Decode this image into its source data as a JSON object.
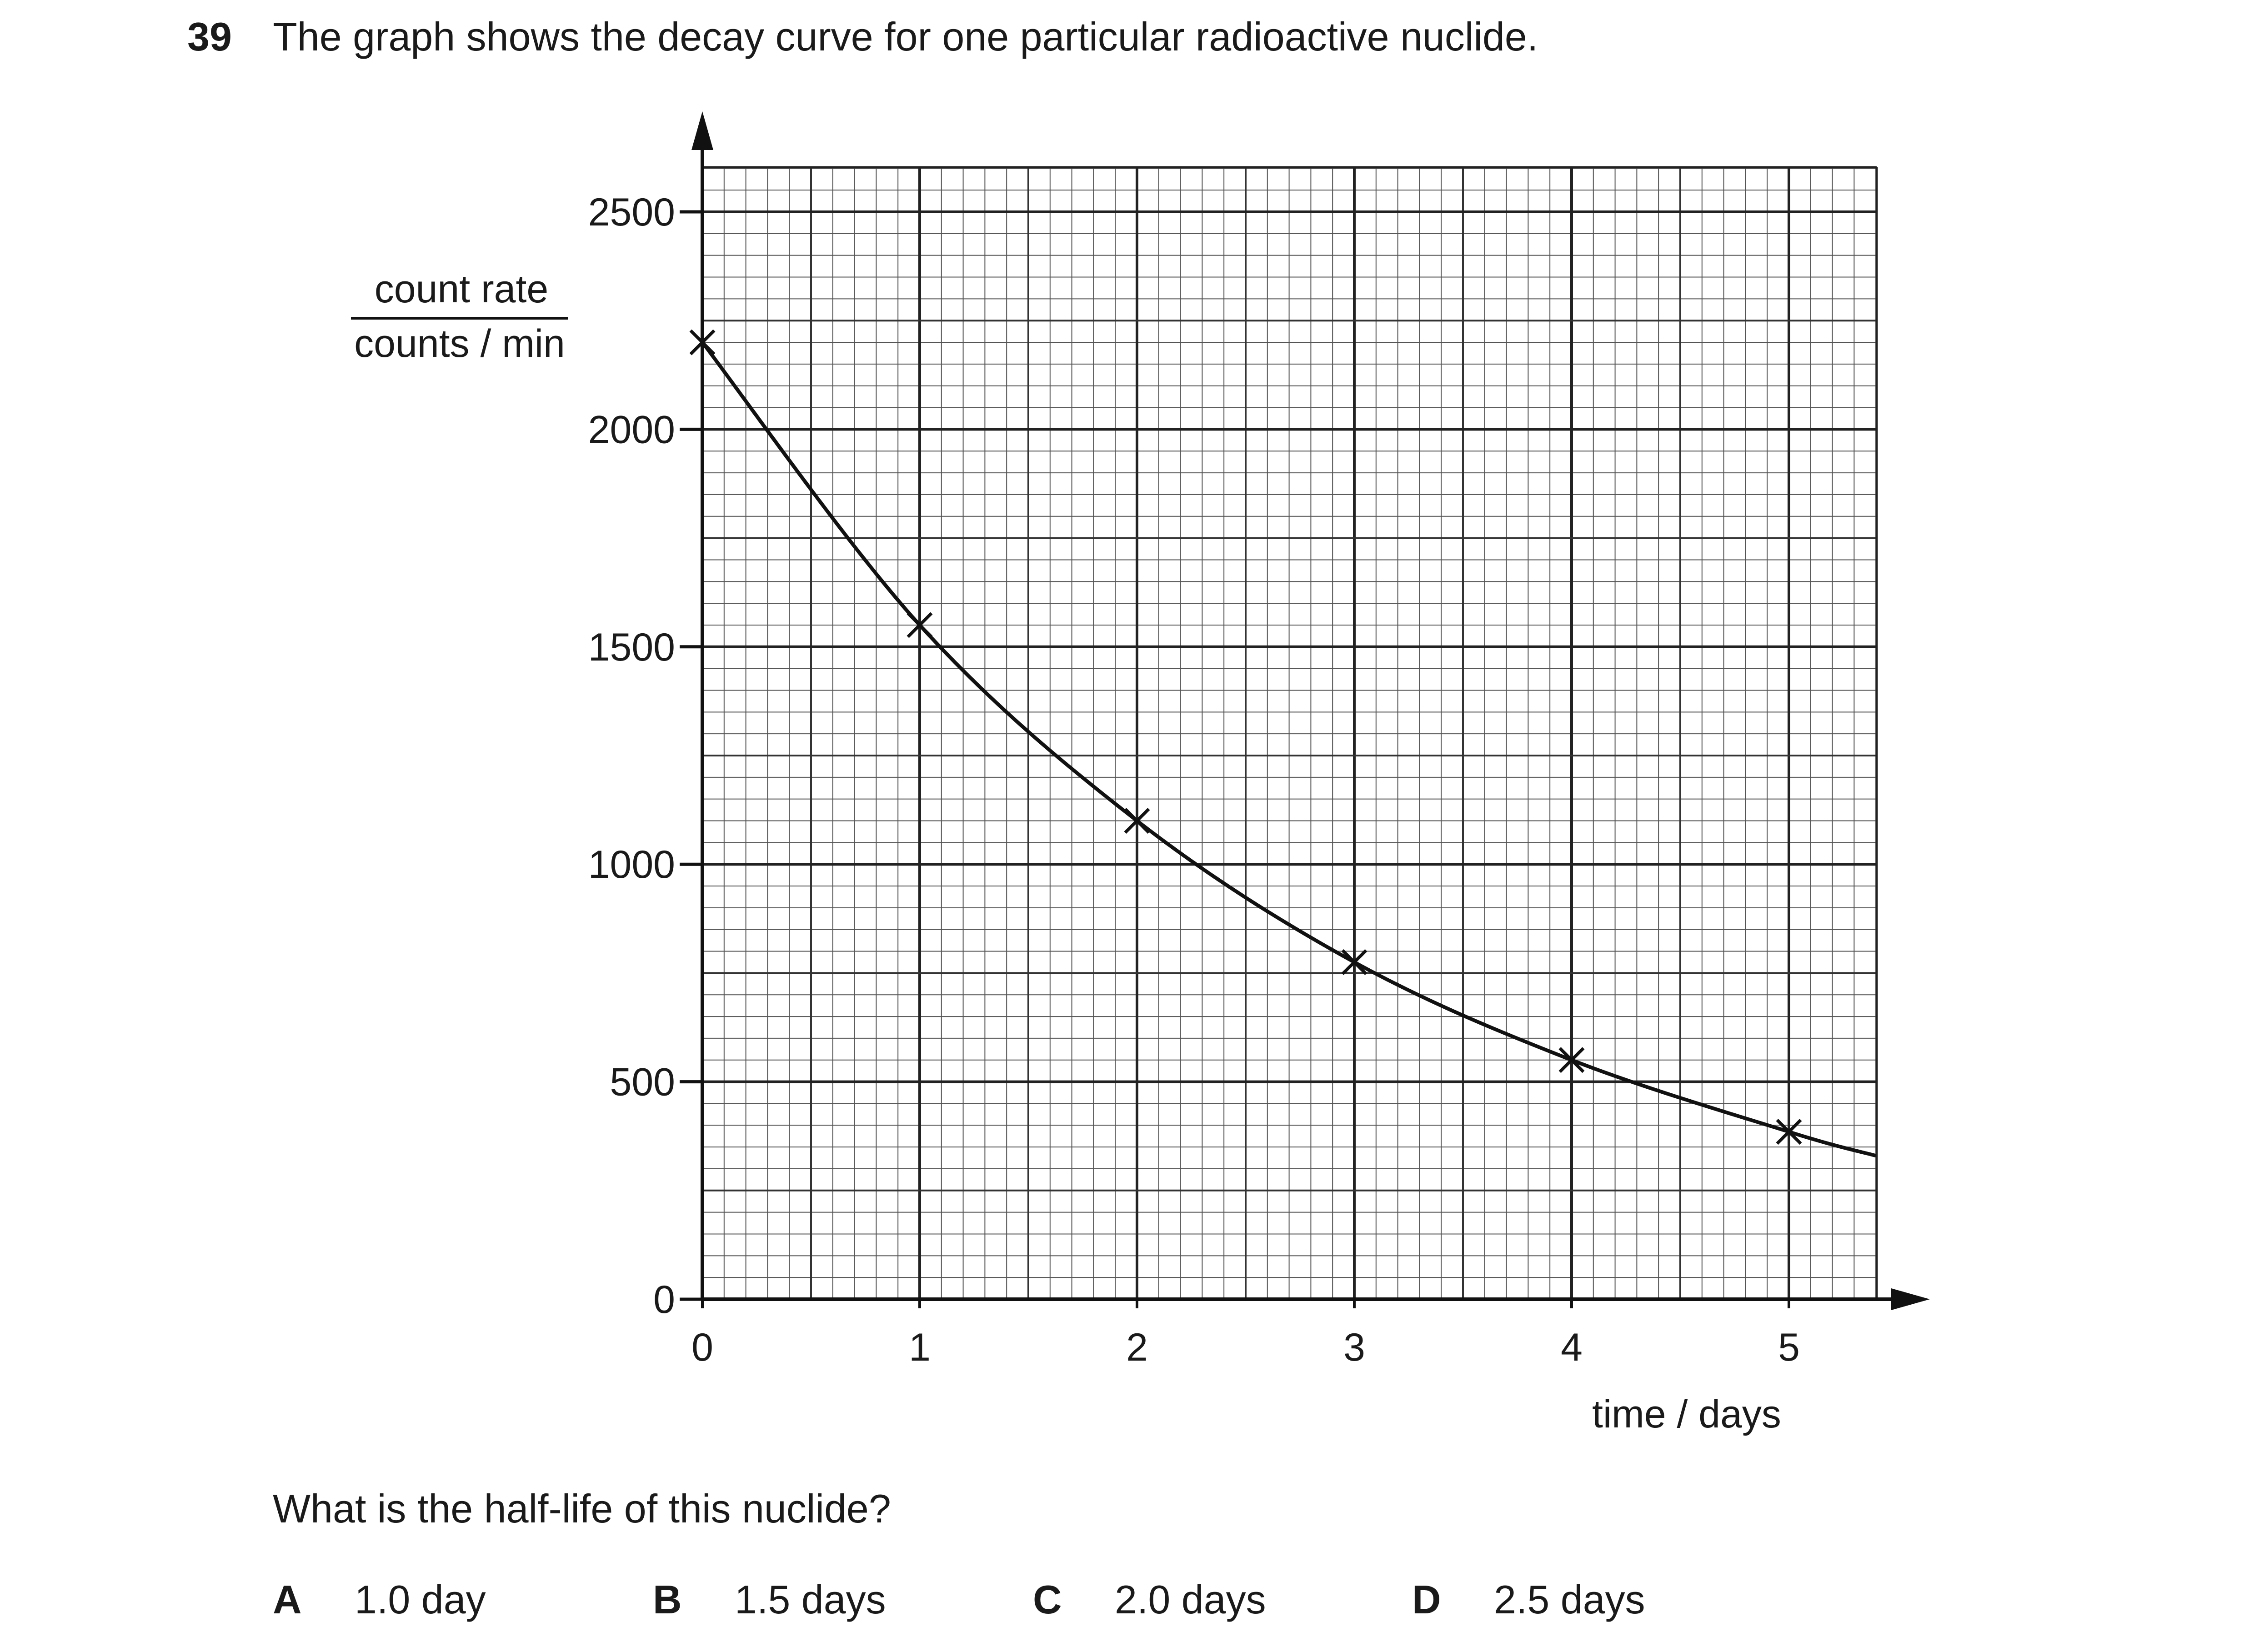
{
  "question": {
    "number": "39",
    "text": "The graph shows the decay curve for one particular radioactive nuclide.",
    "prompt": "What is the half-life of this nuclide?",
    "options": [
      {
        "letter": "A",
        "text": "1.0 day"
      },
      {
        "letter": "B",
        "text": "1.5 days"
      },
      {
        "letter": "C",
        "text": "2.0 days"
      },
      {
        "letter": "D",
        "text": "2.5 days"
      }
    ]
  },
  "chart_data": {
    "type": "line",
    "title": "",
    "xlabel": "time / days",
    "ylabel_top": "count rate",
    "ylabel_bottom": "counts / min",
    "xlim": [
      0,
      5.4
    ],
    "ylim": [
      0,
      2500
    ],
    "xticks": [
      0,
      1,
      2,
      3,
      4,
      5
    ],
    "yticks": [
      0,
      500,
      1000,
      1500,
      2000,
      2500
    ],
    "grid": "fine graph paper (0.1 day by 50 counts/min)",
    "points": [
      {
        "x": 0,
        "y": 2200
      },
      {
        "x": 1,
        "y": 1550
      },
      {
        "x": 2,
        "y": 1100
      },
      {
        "x": 3,
        "y": 775
      },
      {
        "x": 4,
        "y": 550
      },
      {
        "x": 5,
        "y": 385
      }
    ],
    "curve_end": {
      "x": 5.4,
      "y": 330
    },
    "marker": "cross"
  }
}
